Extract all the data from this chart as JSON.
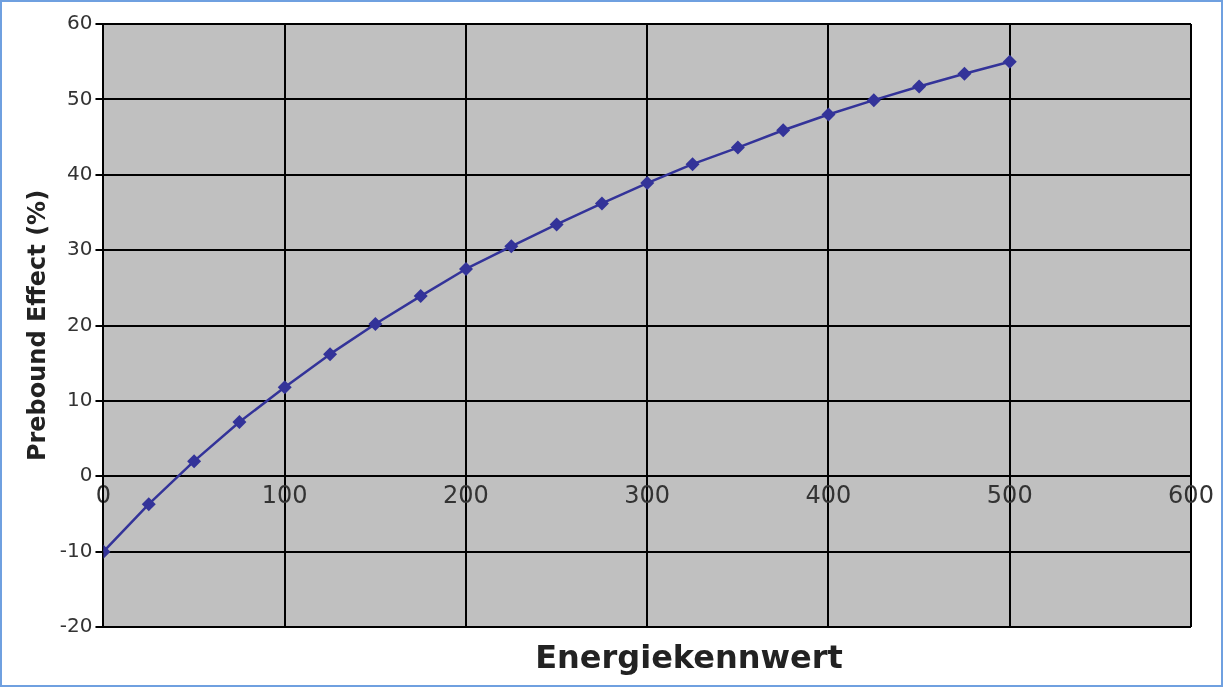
{
  "chart_data": {
    "type": "line",
    "xlabel": "Energiekennwert",
    "ylabel": "Prebound Effect (%)",
    "x": [
      0,
      25,
      50,
      75,
      100,
      125,
      150,
      175,
      200,
      225,
      250,
      275,
      300,
      325,
      350,
      375,
      400,
      425,
      450,
      475,
      500
    ],
    "series": [
      {
        "color": "#333399",
        "values": [
          -10,
          -3.7,
          2.0,
          7.2,
          11.8,
          16.2,
          20.2,
          23.9,
          27.5,
          30.5,
          33.4,
          36.2,
          38.9,
          41.4,
          43.6,
          45.9,
          48.0,
          49.9,
          51.7,
          53.4,
          55.0
        ]
      }
    ],
    "xlim": [
      0,
      600
    ],
    "ylim": [
      -20,
      60
    ],
    "xticks": [
      0,
      100,
      200,
      300,
      400,
      500,
      600
    ],
    "yticks": [
      -20,
      -10,
      0,
      10,
      20,
      30,
      40,
      50,
      60
    ],
    "grid": true,
    "marker": "diamond"
  }
}
